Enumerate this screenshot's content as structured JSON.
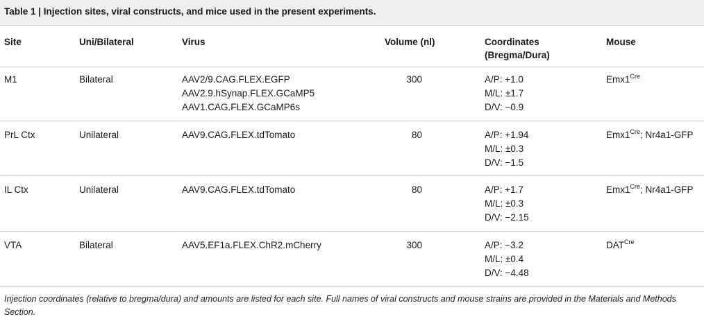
{
  "title": "Table 1 | Injection sites, viral constructs, and mice used in the present experiments.",
  "headers": {
    "site": "Site",
    "uni_bilateral": "Uni/Bilateral",
    "virus": "Virus",
    "volume": "Volume (nl)",
    "coordinates_line1": "Coordinates",
    "coordinates_line2": "(Bregma/Dura)",
    "mouse": "Mouse"
  },
  "rows": [
    {
      "site": "M1",
      "laterality": "Bilateral",
      "virus": [
        "AAV2/9.CAG.FLEX.EGFP",
        "AAV2.9.hSynap.FLEX.GCaMP5",
        "AAV1.CAG.FLEX.GCaMP6s"
      ],
      "volume": "300",
      "coords": [
        "A/P: +1.0",
        "M/L: ±1.7",
        "D/V: −0.9"
      ],
      "mouse_base": "Emx1",
      "mouse_sup": "Cre",
      "mouse_suffix": ""
    },
    {
      "site": "PrL Ctx",
      "laterality": "Unilateral",
      "virus": [
        "AAV9.CAG.FLEX.tdTomato"
      ],
      "volume": "80",
      "coords": [
        "A/P: +1.94",
        "M/L: ±0.3",
        "D/V: −1.5"
      ],
      "mouse_base": "Emx1",
      "mouse_sup": "Cre",
      "mouse_suffix": "; Nr4a1-GFP"
    },
    {
      "site": "IL Ctx",
      "laterality": "Unilateral",
      "virus": [
        "AAV9.CAG.FLEX.tdTomato"
      ],
      "volume": "80",
      "coords": [
        "A/P: +1.7",
        "M/L: ±0.3",
        "D/V: −2.15"
      ],
      "mouse_base": "Emx1",
      "mouse_sup": "Cre",
      "mouse_suffix": "; Nr4a1-GFP"
    },
    {
      "site": "VTA",
      "laterality": "Bilateral",
      "virus": [
        "AAV5.EF1a.FLEX.ChR2.mCherry"
      ],
      "volume": "300",
      "coords": [
        "A/P: −3.2",
        "M/L: ±0.4",
        "D/V: −4.48"
      ],
      "mouse_base": "DAT",
      "mouse_sup": "Cre",
      "mouse_suffix": ""
    }
  ],
  "footnote": "Injection coordinates (relative to bregma/dura) and amounts are listed for each site. Full names of viral constructs and mouse strains are provided in the Materials and Methods Section."
}
